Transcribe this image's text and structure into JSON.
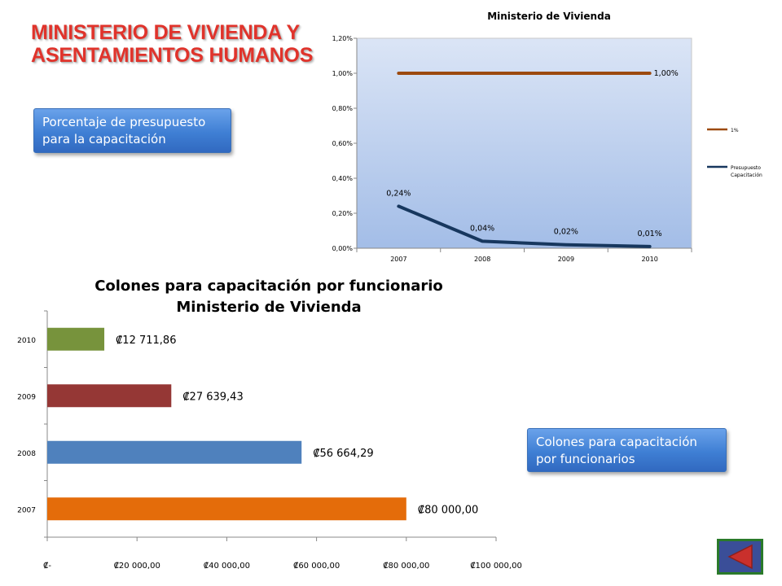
{
  "slide": {
    "title_line1": "MINISTERIO DE VIVIENDA Y",
    "title_line2": "ASENTAMIENTOS HUMANOS",
    "callout_1": "Porcentaje de presupuesto para la capacitación",
    "callout_2": "Colones para capacitación por funcionarios",
    "back_button_icon": "triangle-left-icon"
  },
  "chart_data": [
    {
      "type": "line",
      "title": "Ministerio de Vivienda",
      "x": [
        "2007",
        "2008",
        "2009",
        "2010"
      ],
      "ylim": [
        0,
        1.2
      ],
      "yticks": [
        "0,00%",
        "0,20%",
        "0,40%",
        "0,60%",
        "0,80%",
        "1,00%",
        "1,20%"
      ],
      "grid": false,
      "legend_position": "right",
      "series": [
        {
          "name": "1%",
          "values": [
            1.0,
            1.0,
            1.0,
            1.0
          ],
          "color": "#9c4a0f",
          "labels": [
            "",
            "",
            "",
            "1,00%"
          ]
        },
        {
          "name": "Presupuesto Capacitación",
          "values": [
            0.24,
            0.04,
            0.02,
            0.01
          ],
          "color": "#17375e",
          "labels": [
            "0,24%",
            "0,04%",
            "0,02%",
            "0,01%"
          ]
        }
      ]
    },
    {
      "type": "bar",
      "orientation": "horizontal",
      "title_line1": "Colones para capacitación por funcionario",
      "title_line2": "Ministerio de Vivienda",
      "categories": [
        "2010",
        "2009",
        "2008",
        "2007"
      ],
      "values": [
        12711.86,
        27639.43,
        56664.29,
        80000.0
      ],
      "labels": [
        "₡12 711,86",
        "₡27 639,43",
        "₡56 664,29",
        "₡80 000,00"
      ],
      "colors": [
        "#77933c",
        "#953735",
        "#4f81bd",
        "#e46c0a"
      ],
      "xlim": [
        0,
        100000
      ],
      "xticks": [
        "₡-",
        "₡20 000,00",
        "₡40 000,00",
        "₡60 000,00",
        "₡80 000,00",
        "₡100 000,00"
      ]
    }
  ]
}
